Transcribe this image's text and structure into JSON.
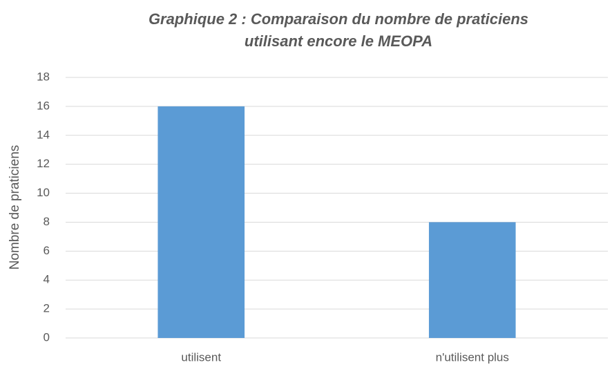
{
  "chart_data": {
    "type": "bar",
    "title": "Graphique 2 : Comparaison du nombre de praticiens utilisant encore le MEOPA",
    "y_label": "Nombre de praticiens",
    "categories": [
      "utilisent",
      "n'utilisent plus"
    ],
    "values": [
      16,
      8
    ],
    "color": "#5b9bd5",
    "ylim": [
      0,
      18
    ],
    "yticks": [
      0,
      2,
      4,
      6,
      8,
      10,
      12,
      14,
      16,
      18
    ],
    "grid": true
  }
}
